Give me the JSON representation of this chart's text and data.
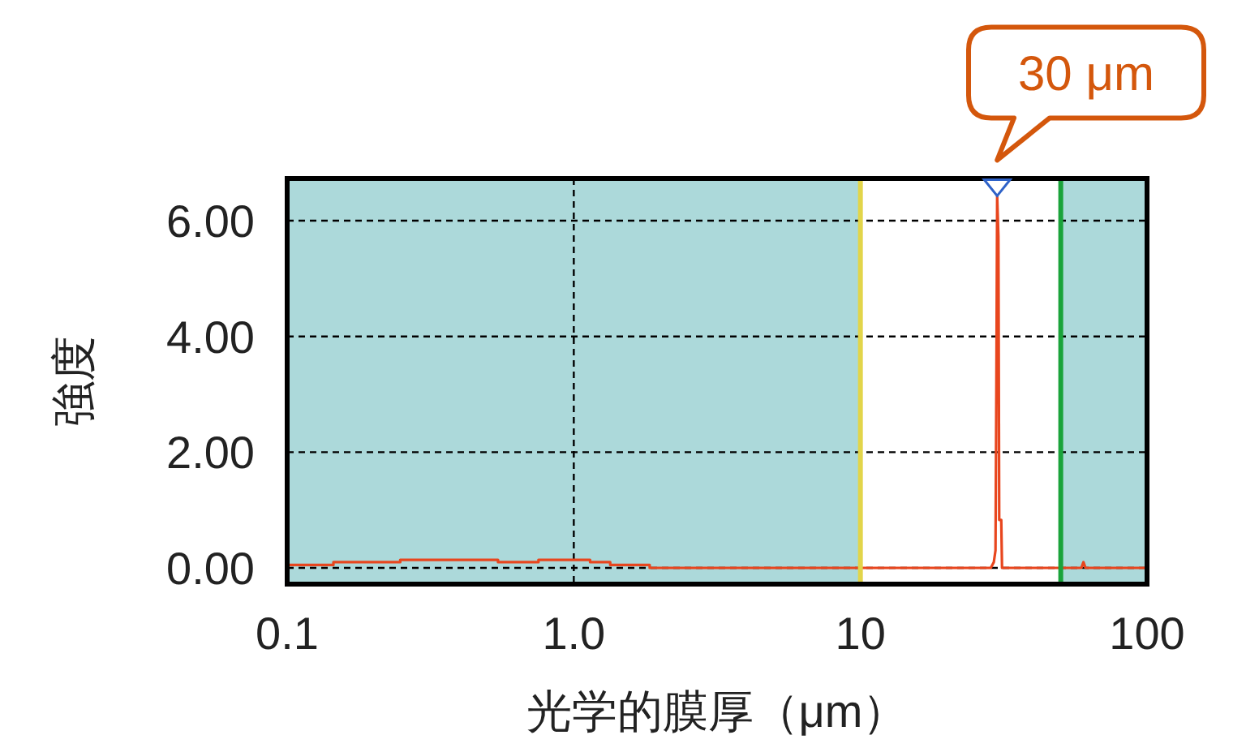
{
  "chart_data": {
    "type": "line",
    "xlabel": "光学的膜厚（μm）",
    "ylabel": "強度",
    "log": "x",
    "xlim": [
      0.1,
      100
    ],
    "ylim": [
      -0.28,
      6.73
    ],
    "xticks": [
      {
        "value": 0.1,
        "label": "0.1"
      },
      {
        "value": 1,
        "label": "1.0"
      },
      {
        "value": 10,
        "label": "10"
      },
      {
        "value": 100,
        "label": "100"
      }
    ],
    "yticks": [
      {
        "value": 0,
        "label": "0.00"
      },
      {
        "value": 2,
        "label": "2.00"
      },
      {
        "value": 4,
        "label": "4.00"
      },
      {
        "value": 6,
        "label": "6.00"
      }
    ],
    "grid": true,
    "line_style": "solid",
    "series": [
      {
        "color": "#e8461e",
        "x": [
          0.1,
          0.145,
          0.145,
          0.248,
          0.248,
          0.544,
          0.544,
          0.753,
          0.753,
          1.14,
          1.14,
          1.34,
          1.34,
          1.84,
          1.84,
          28.5,
          29.2,
          29.6,
          29.8,
          30.0,
          30.3,
          30.5,
          31.0,
          31.2,
          59,
          60,
          61,
          100
        ],
        "values": [
          0.05,
          0.05,
          0.1,
          0.1,
          0.14,
          0.14,
          0.1,
          0.1,
          0.14,
          0.14,
          0.1,
          0.1,
          0.05,
          0.05,
          0,
          0,
          0.1,
          0.3,
          3.0,
          6.43,
          5.73,
          0.83,
          0.83,
          0,
          0,
          0.1,
          0,
          0
        ]
      }
    ],
    "bands": [
      {
        "axis": "x",
        "from": 0.1,
        "to": 10,
        "color": "#acd9da"
      },
      {
        "axis": "x",
        "from": 50,
        "to": 100,
        "color": "#acd9da"
      }
    ],
    "ref_lines": [
      {
        "axis": "x",
        "value": 10,
        "color": "#e2d54a"
      },
      {
        "axis": "x",
        "value": 50,
        "color": "#1aa33a"
      }
    ],
    "annotations": [
      {
        "text": "30 μm",
        "x": 30,
        "y": 6.43
      }
    ]
  }
}
